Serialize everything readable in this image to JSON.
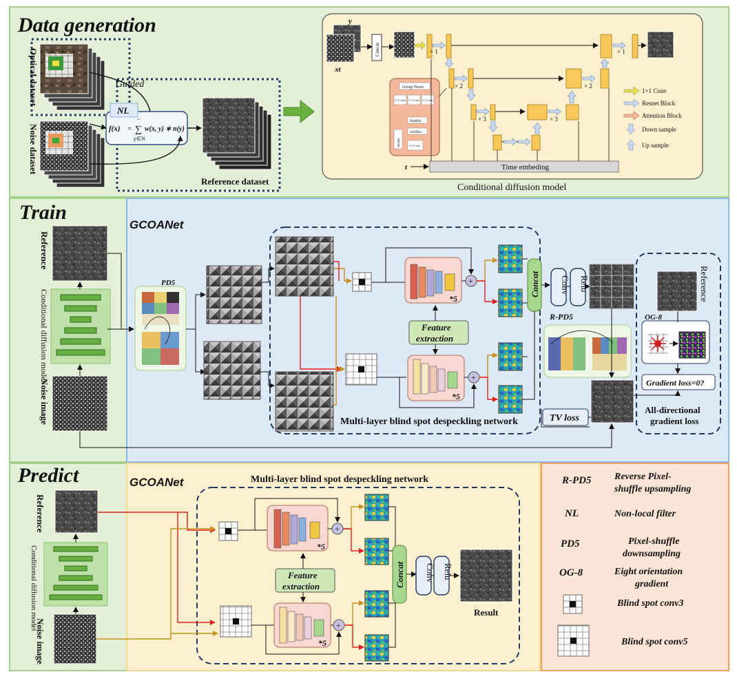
{
  "sections": {
    "data_generation": "Data generation",
    "train": "Train",
    "predict": "Predict"
  },
  "datasets": {
    "optical": "Optical dataset",
    "noise": "Noise dataset",
    "reference": "Reference dataset",
    "guided": "Guided",
    "nl": "NL",
    "formula_lhs": "f(x)",
    "formula_eq": "=",
    "formula_sum": "∑",
    "formula_sum_top": "~",
    "formula_sum_bottom": "y∈N",
    "formula_rhs": "w(x, y) ∗ n(y)"
  },
  "diffusion": {
    "caption": "Conditional diffusion model",
    "concat": "Concat",
    "input_y": "y",
    "input_xt": "xt",
    "input_t": "t",
    "time_embed": "Time embeding",
    "mult_1a": "× 1",
    "mult_1b": "× 1",
    "mult_2a": "× 2",
    "mult_2b": "× 2",
    "mult_3a": "× 3",
    "mult_3b": "× 3",
    "attn_groupnorm": "Group Norm",
    "attn_conv_a": "1×1 Conv",
    "attn_conv_b": "1×1 Conv",
    "attn_conv_c": "1×1 Conv",
    "attn_matmul": "MatMul",
    "attn_softmax": "SoftMax",
    "attn_matmul2": "MatMul",
    "attn_conv_out": "1×1 Conv",
    "legend": {
      "conv": "1×1 Conv",
      "resnet": "Resnet Block",
      "attention": "Attention Block",
      "down": "Down sample",
      "up": "Up sample"
    }
  },
  "train": {
    "reference": "Reference",
    "cdm": "Conditional diffusion model",
    "noise_image": "Noise image",
    "gcoanet": "GCOANet",
    "pd5": "PD5",
    "rpd5": "R-PD5",
    "feature_extraction": "Feature extraction",
    "times5": "*5",
    "concat": "Concat",
    "conv": "Conv",
    "relu": "Relu",
    "network": "Multi-layer blind  spot despeckling network",
    "tv_loss": "TV loss",
    "reference_right": "Reference",
    "og8": "OG-8",
    "gradient_loss": "Gradient loss=0?",
    "all_dir_1": "All-directional",
    "all_dir_2": "gradient loss"
  },
  "predict": {
    "reference": "Reference",
    "cdm": "Conditional diffusion model",
    "noise_image": "Noise image",
    "gcoanet": "GCOANet",
    "network": "Multi-layer blind spot despeckling network",
    "feature_extraction": "Feature extraction",
    "times5": "*5",
    "concat": "Concat",
    "conv": "Conv",
    "relu": "Relu",
    "result": "Result"
  },
  "legend": {
    "rpd5_key": "R-PD5",
    "rpd5_val_1": "Reverse Pixel-",
    "rpd5_val_2": "shuffle upsampling",
    "nl_key": "NL",
    "nl_val": "Non-local filter",
    "pd5_key": "PD5",
    "pd5_val_1": "Pixel-shuffle",
    "pd5_val_2": "downsampling",
    "og8_key": "OG-8",
    "og8_val_1": "Eight orientation",
    "og8_val_2": "gradient",
    "bs3_val": "Blind spot conv3",
    "bs5_val": "Blind spot conv5"
  },
  "colors": {
    "green_bg": "#e3efd6",
    "green_border": "#a6d08c",
    "blue_bg": "#dde9f5",
    "blue_border": "#8db8e2",
    "yellow_bg": "#fdf0cf",
    "legend_bg": "#fbe5d6",
    "legend_border": "#f0a060",
    "dark_line": "#1f3864",
    "orange_arrow": "#c89020",
    "red_arrow": "#e02020"
  }
}
